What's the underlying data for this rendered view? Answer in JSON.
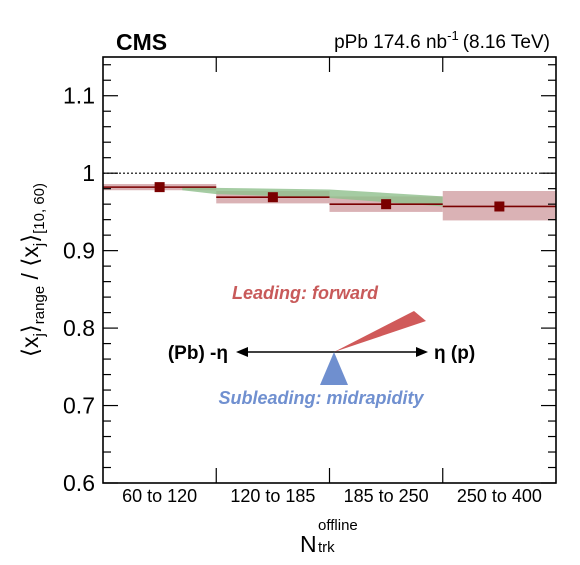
{
  "header": {
    "experiment": "CMS",
    "lumi_prefix": "pPb 174.6 nb",
    "lumi_exp": "-1",
    "energy": "(8.16 TeV)"
  },
  "axes": {
    "ylabel_parts": [
      "⟨x",
      "j",
      "⟩",
      "range",
      " / ⟨x",
      "j",
      "⟩",
      "[10, 60)"
    ],
    "xlabel_main": "N",
    "xlabel_sup": "offline",
    "xlabel_sub": "trk"
  },
  "annotations": {
    "leading": "Leading: forward",
    "subleading": "Subleading: midrapidity",
    "left_arrow": "(Pb) -η",
    "right_arrow": "η (p)"
  },
  "colors": {
    "marker": "#7a0000",
    "red_band": "#d4a5a8",
    "green_band": "#8fbf8c",
    "leading_wedge": "#d05a5a",
    "subleading_wedge": "#6f8fcf",
    "leading_text": "#c85a5a",
    "subleading_text": "#7090d0"
  },
  "chart_data": {
    "type": "scatter",
    "categories": [
      "60 to 120",
      "120 to 185",
      "185 to 250",
      "250 to 400"
    ],
    "ylim": [
      0.6,
      1.15
    ],
    "yticks": [
      0.6,
      0.7,
      0.8,
      0.9,
      1.0,
      1.1
    ],
    "ytick_labels": [
      "0.6",
      "0.7",
      "0.8",
      "0.9",
      "1",
      "1.1"
    ],
    "reference_line": 1.0,
    "series": [
      {
        "values": [
          0.982,
          0.969,
          0.96,
          0.957
        ],
        "syst_band": [
          [
            0.978,
            0.986
          ],
          [
            0.961,
            0.977
          ],
          [
            0.95,
            0.97
          ],
          [
            0.939,
            0.977
          ]
        ]
      }
    ],
    "model_band": [
      {
        "x": 0.0,
        "low": 0.978,
        "high": 0.983
      },
      {
        "x": 1.0,
        "low": 0.973,
        "high": 0.981
      },
      {
        "x": 2.0,
        "low": 0.968,
        "high": 0.979
      },
      {
        "x": 3.0,
        "low": 0.957,
        "high": 0.97
      }
    ],
    "grid": false
  }
}
